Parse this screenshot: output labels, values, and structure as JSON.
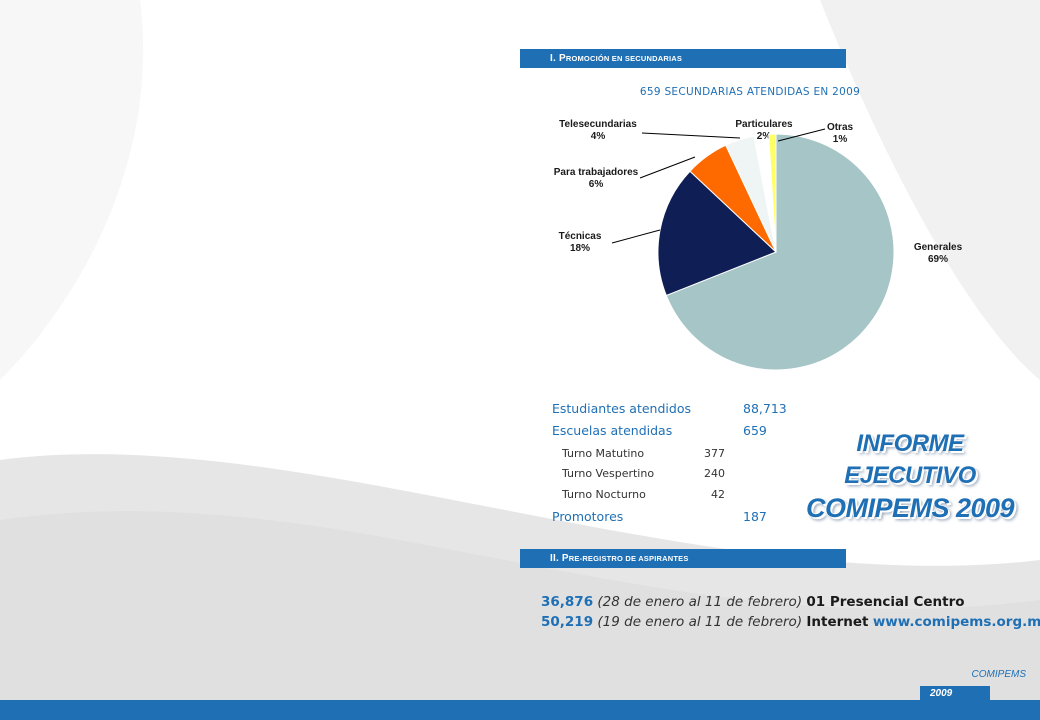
{
  "section1": {
    "numeral": "I.",
    "first_letter": "P",
    "rest": "ROMOCIÓN EN SECUNDARIAS"
  },
  "section2": {
    "numeral": "II.",
    "first_letter": "P",
    "rest": "RE-REGISTRO DE ASPIRANTES"
  },
  "chart_data": {
    "type": "pie",
    "title": "659 SECUNDARIAS ATENDIDAS EN 2009",
    "categories": [
      "Generales",
      "Técnicas",
      "Para trabajadores",
      "Telesecundarias",
      "Particulares",
      "Otras"
    ],
    "values": [
      69,
      18,
      6,
      4,
      2,
      1
    ],
    "labels": [
      "69%",
      "18%",
      "6%",
      "4%",
      "2%",
      "1%"
    ],
    "colors": [
      "#a6c5c7",
      "#0f1f56",
      "#ff6a00",
      "#eef5f4",
      "#ffffff",
      "#ffff66"
    ]
  },
  "stats": {
    "estudiantes": {
      "label": "Estudiantes atendidos",
      "value": "88,713"
    },
    "escuelas": {
      "label": "Escuelas atendidas",
      "value": "659"
    },
    "turnos": [
      {
        "label": "Turno Matutino",
        "value": "377"
      },
      {
        "label": "Turno Vespertino",
        "value": "240"
      },
      {
        "label": "Turno Nocturno",
        "value": "42"
      }
    ],
    "promotores": {
      "label": "Promotores",
      "value": "187"
    }
  },
  "title_block": {
    "line1": "INFORME",
    "line2": "EJECUTIVO",
    "line3": "COMIPEMS 2009"
  },
  "preregistro": [
    {
      "number": "36,876",
      "dates": "(28 de enero al 11 de febrero)",
      "code": "01 Presencial Centro",
      "url": ""
    },
    {
      "number": "50,219",
      "dates": "(19 de enero al 11 de febrero)",
      "code": "Internet",
      "url": "www.comipems.org.mx"
    }
  ],
  "footer": {
    "org": "COMIPEMS",
    "year": "2009"
  },
  "theme": {
    "accent": "#1f6fb5",
    "background_gray": "#e8e8e8"
  }
}
